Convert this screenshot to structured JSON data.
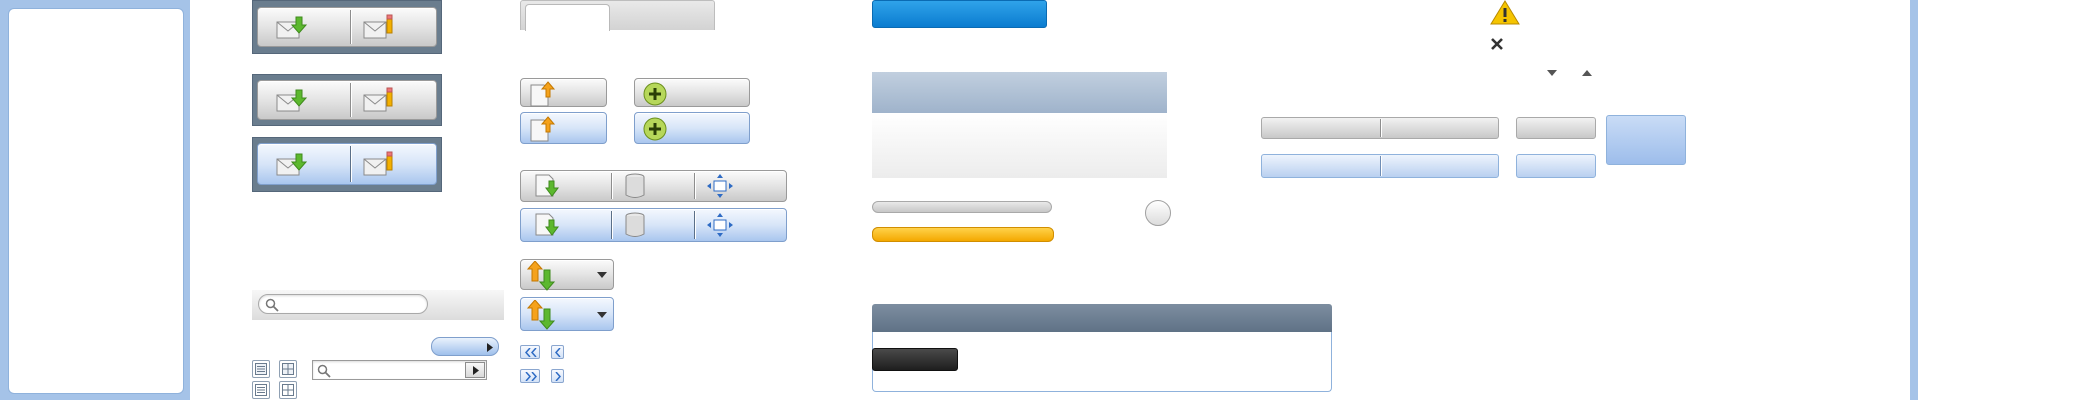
{
  "layout_note": "",
  "colors": {
    "accent_blue": "#0b7cd0",
    "selection_blue": "#a9c6ee",
    "progress_orange": "#f4a800",
    "warning_yellow": "#f5c400",
    "slate_header": "#5f7286",
    "frame_blue": "#a5c3e8"
  },
  "progress": {
    "value": 1.0
  },
  "icons": {
    "mail_receive": "mail-receive-icon",
    "mail_compose": "mail-compose-icon",
    "doc_upload": "document-upload-icon",
    "add": "add-icon",
    "doc_download": "document-download-icon",
    "trash": "trash-icon",
    "fit": "fit-to-window-icon",
    "sync": "sync-icon",
    "warning": "warning-icon",
    "close": "close-icon",
    "search": "search-icon",
    "list_view": "list-view-icon",
    "grid_view": "grid-view-icon",
    "first_page": "first-page-icon",
    "prev_page": "previous-page-icon",
    "last_page": "last-page-icon",
    "next_page": "next-page-icon",
    "sort_desc": "sort-descending-icon",
    "sort_asc": "sort-ascending-icon",
    "dropdown": "chevron-down-icon",
    "play": "play-icon"
  },
  "search": {
    "value": "",
    "placeholder": ""
  },
  "search2": {
    "value": "",
    "placeholder": ""
  }
}
